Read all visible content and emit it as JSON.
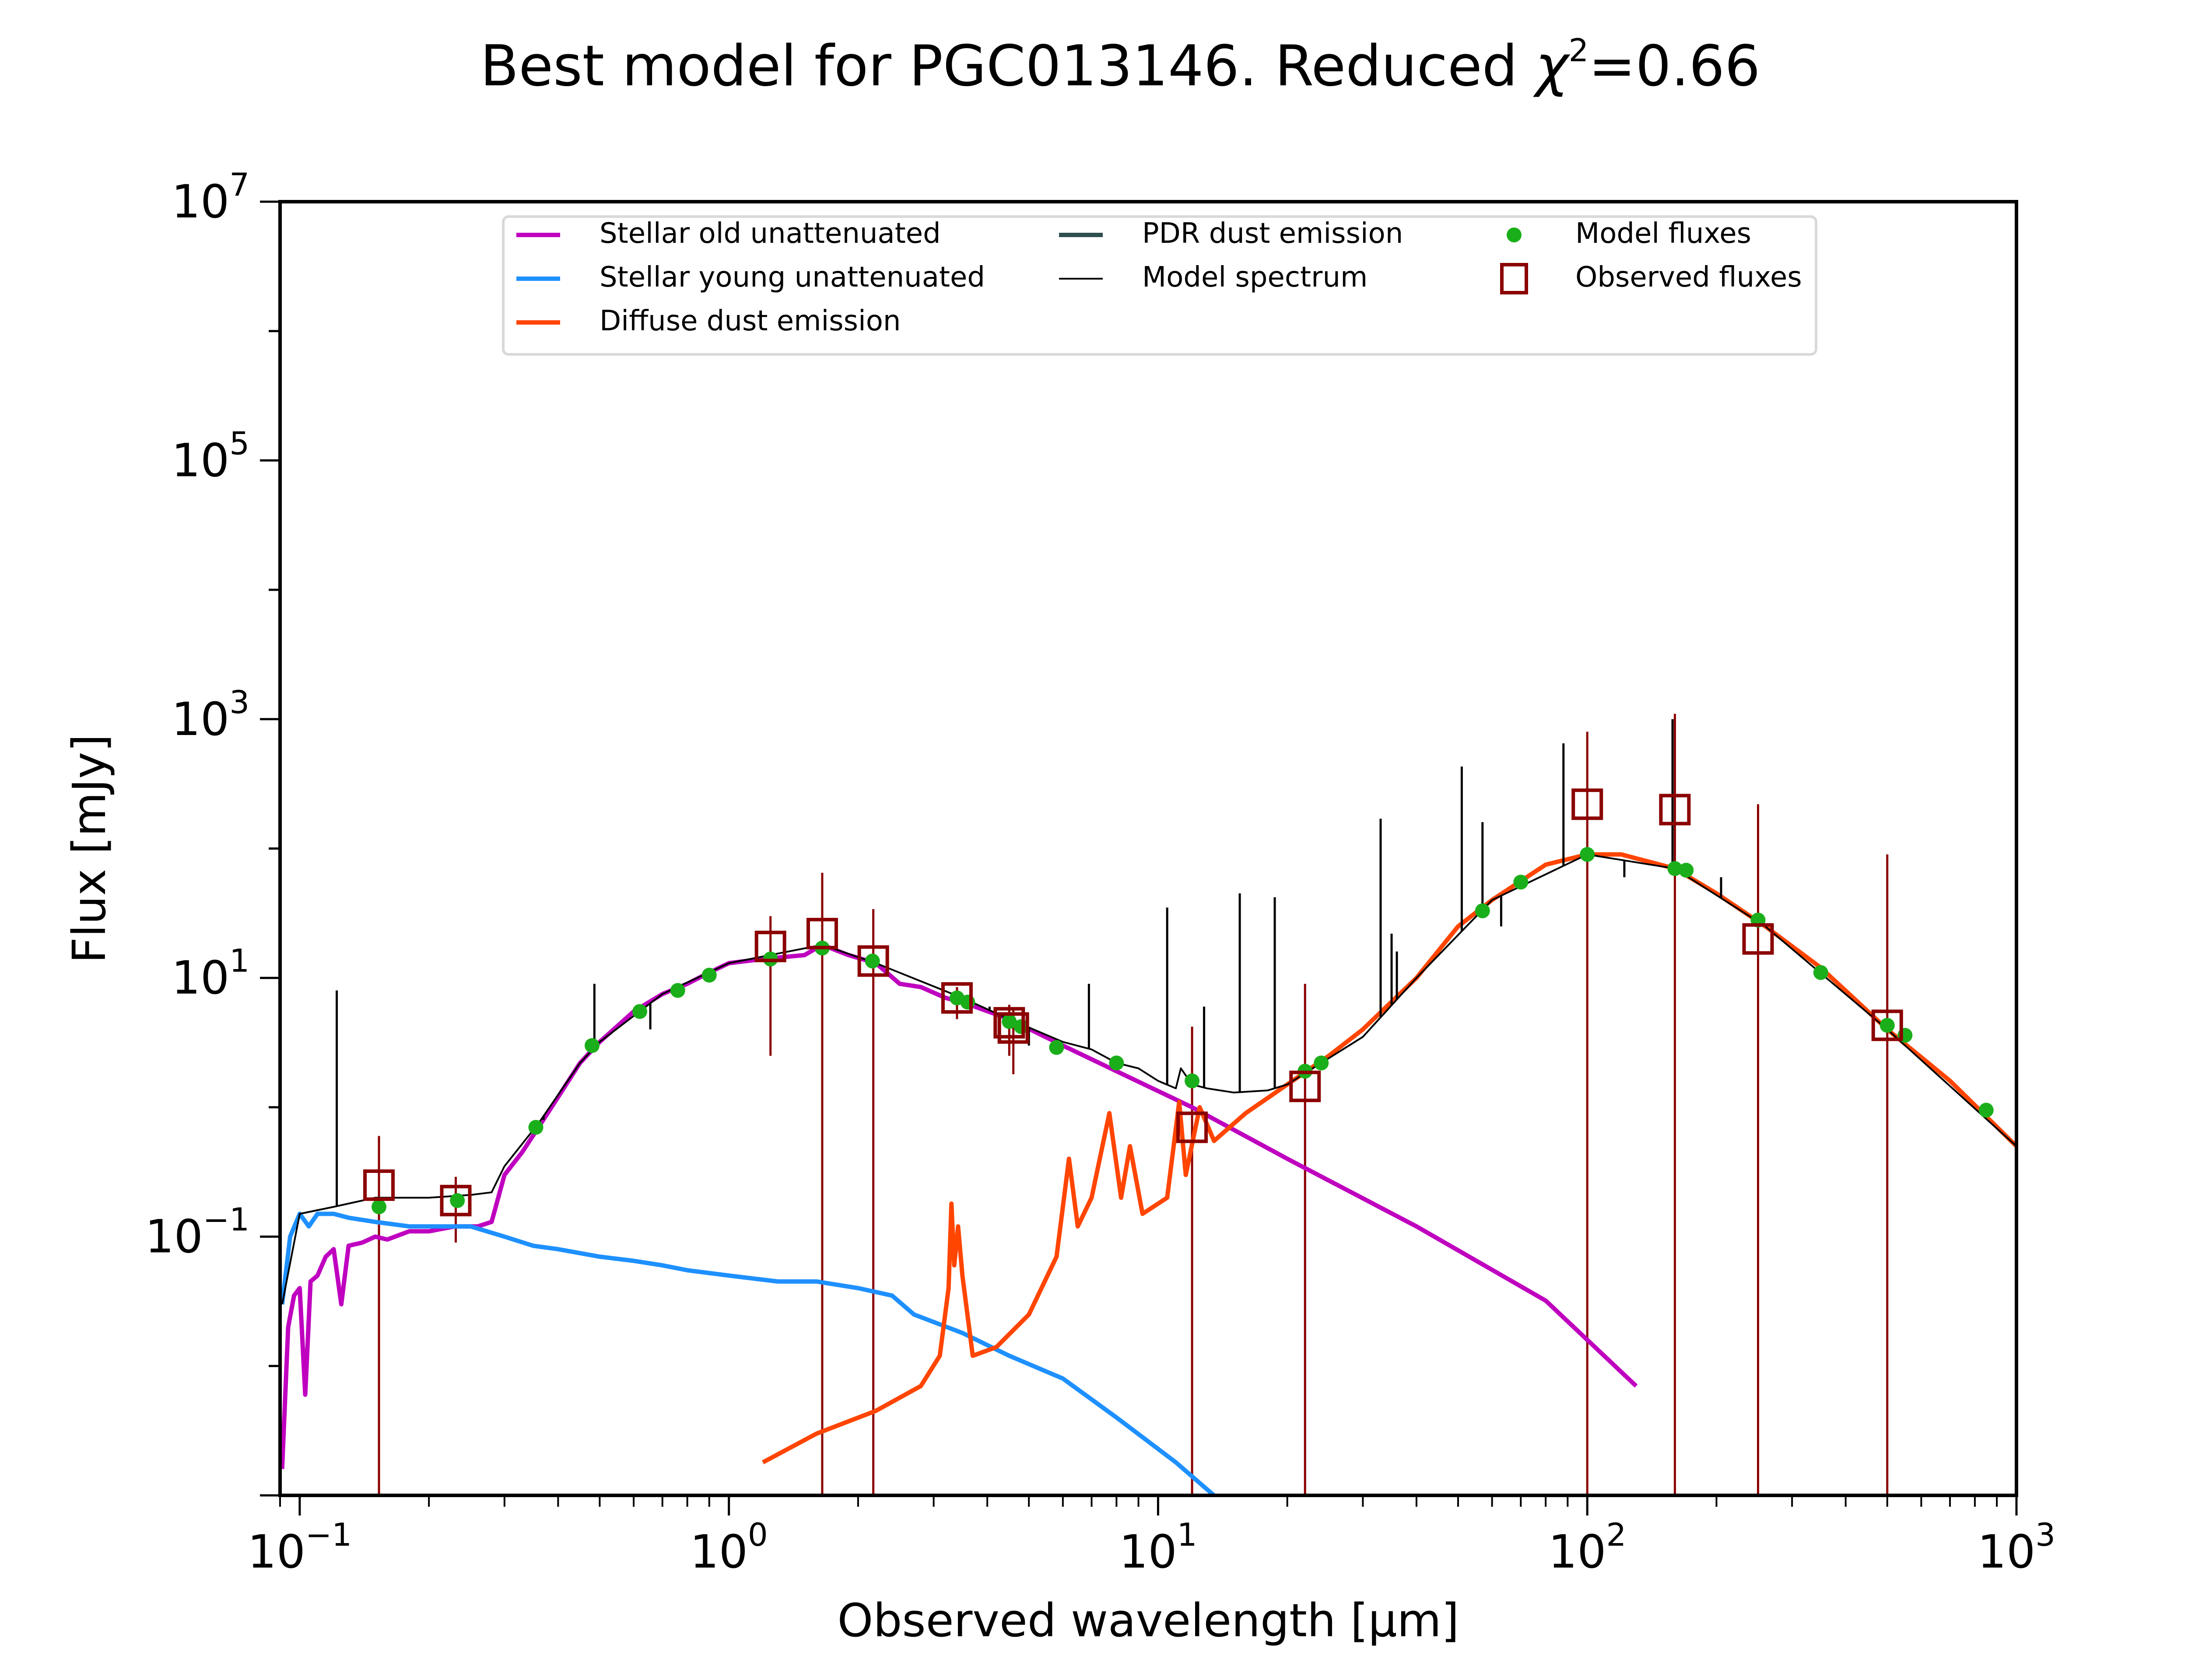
{
  "chart_data": {
    "type": "line",
    "title": "Best model for PGC013146. Reduced χ²=0.66",
    "title_parts": {
      "prefix": "Best model for PGC013146. Reduced ",
      "chi": "χ",
      "sup": "2",
      "suffix": "=0.66"
    },
    "xlabel": "Observed wavelength [μm]",
    "ylabel": "Flux [mJy]",
    "xscale": "log",
    "yscale": "log",
    "xlim": [
      0.09,
      1000
    ],
    "ylim": [
      0.001,
      10000000
    ],
    "x_ticks": [
      {
        "value": 0.1,
        "base": "10",
        "exp": "−1"
      },
      {
        "value": 1,
        "base": "10",
        "exp": "0"
      },
      {
        "value": 10,
        "base": "10",
        "exp": "1"
      },
      {
        "value": 100,
        "base": "10",
        "exp": "2"
      },
      {
        "value": 1000,
        "base": "10",
        "exp": "3"
      }
    ],
    "y_ticks": [
      {
        "value": 0.1,
        "base": "10",
        "exp": "−1"
      },
      {
        "value": 10,
        "base": "10",
        "exp": "1"
      },
      {
        "value": 1000,
        "base": "10",
        "exp": "3"
      },
      {
        "value": 100000,
        "base": "10",
        "exp": "5"
      },
      {
        "value": 10000000,
        "base": "10",
        "exp": "7"
      }
    ],
    "grid": false,
    "legend_position": "top-center",
    "series": [
      {
        "name": "Stellar old unattenuated",
        "kind": "line",
        "color": "#bf00bf",
        "points": [
          [
            0.091,
            0.0016
          ],
          [
            0.094,
            0.02
          ],
          [
            0.097,
            0.035
          ],
          [
            0.1,
            0.04
          ],
          [
            0.103,
            0.006
          ],
          [
            0.106,
            0.045
          ],
          [
            0.11,
            0.05
          ],
          [
            0.115,
            0.07
          ],
          [
            0.12,
            0.08
          ],
          [
            0.125,
            0.03
          ],
          [
            0.13,
            0.085
          ],
          [
            0.14,
            0.09
          ],
          [
            0.15,
            0.1
          ],
          [
            0.16,
            0.095
          ],
          [
            0.18,
            0.11
          ],
          [
            0.2,
            0.11
          ],
          [
            0.23,
            0.12
          ],
          [
            0.26,
            0.12
          ],
          [
            0.28,
            0.13
          ],
          [
            0.3,
            0.3
          ],
          [
            0.33,
            0.45
          ],
          [
            0.36,
            0.7
          ],
          [
            0.4,
            1.2
          ],
          [
            0.45,
            2.2
          ],
          [
            0.5,
            3.2
          ],
          [
            0.6,
            5.5
          ],
          [
            0.7,
            7.5
          ],
          [
            0.8,
            9
          ],
          [
            0.9,
            11
          ],
          [
            1.0,
            13
          ],
          [
            1.2,
            14
          ],
          [
            1.5,
            15
          ],
          [
            1.65,
            18
          ],
          [
            1.9,
            15
          ],
          [
            2.2,
            13
          ],
          [
            2.5,
            9
          ],
          [
            2.8,
            8.5
          ],
          [
            3.2,
            7
          ],
          [
            3.5,
            6.5
          ],
          [
            4.5,
            4.8
          ],
          [
            6,
            3
          ],
          [
            8,
            1.9
          ],
          [
            12,
            1.0
          ],
          [
            20,
            0.4
          ],
          [
            40,
            0.12
          ],
          [
            80,
            0.032
          ],
          [
            130,
            0.007
          ]
        ]
      },
      {
        "name": "Stellar young unattenuated",
        "kind": "line",
        "color": "#1e90ff",
        "points": [
          [
            0.091,
            0.03
          ],
          [
            0.095,
            0.1
          ],
          [
            0.1,
            0.15
          ],
          [
            0.105,
            0.12
          ],
          [
            0.11,
            0.15
          ],
          [
            0.12,
            0.15
          ],
          [
            0.13,
            0.14
          ],
          [
            0.15,
            0.13
          ],
          [
            0.18,
            0.12
          ],
          [
            0.2,
            0.12
          ],
          [
            0.25,
            0.12
          ],
          [
            0.3,
            0.1
          ],
          [
            0.35,
            0.085
          ],
          [
            0.4,
            0.08
          ],
          [
            0.5,
            0.07
          ],
          [
            0.6,
            0.065
          ],
          [
            0.7,
            0.06
          ],
          [
            0.8,
            0.055
          ],
          [
            1.0,
            0.05
          ],
          [
            1.3,
            0.045
          ],
          [
            1.6,
            0.045
          ],
          [
            2.0,
            0.04
          ],
          [
            2.4,
            0.035
          ],
          [
            2.7,
            0.025
          ],
          [
            3.5,
            0.018
          ],
          [
            4.5,
            0.012
          ],
          [
            6,
            0.008
          ],
          [
            8,
            0.004
          ],
          [
            11,
            0.0018
          ],
          [
            14,
            0.0009
          ]
        ]
      },
      {
        "name": "Diffuse dust emission",
        "kind": "line",
        "color": "#ff4500",
        "points": [
          [
            1.2,
            0.0018
          ],
          [
            1.6,
            0.003
          ],
          [
            2.2,
            0.0045
          ],
          [
            2.8,
            0.007
          ],
          [
            3.1,
            0.012
          ],
          [
            3.25,
            0.04
          ],
          [
            3.3,
            0.18
          ],
          [
            3.35,
            0.06
          ],
          [
            3.42,
            0.12
          ],
          [
            3.5,
            0.05
          ],
          [
            3.7,
            0.012
          ],
          [
            4.2,
            0.014
          ],
          [
            5,
            0.025
          ],
          [
            5.8,
            0.07
          ],
          [
            6.2,
            0.4
          ],
          [
            6.5,
            0.12
          ],
          [
            7,
            0.2
          ],
          [
            7.7,
            0.9
          ],
          [
            8.2,
            0.2
          ],
          [
            8.6,
            0.5
          ],
          [
            9.2,
            0.15
          ],
          [
            10.5,
            0.2
          ],
          [
            11.2,
            1.1
          ],
          [
            11.6,
            0.3
          ],
          [
            12.5,
            1.0
          ],
          [
            13.5,
            0.55
          ],
          [
            16,
            0.9
          ],
          [
            20,
            1.5
          ],
          [
            25,
            2.5
          ],
          [
            30,
            4
          ],
          [
            40,
            10
          ],
          [
            50,
            25
          ],
          [
            60,
            40
          ],
          [
            80,
            75
          ],
          [
            100,
            90
          ],
          [
            120,
            90
          ],
          [
            160,
            70
          ],
          [
            200,
            45
          ],
          [
            260,
            25
          ],
          [
            350,
            12
          ],
          [
            500,
            4
          ],
          [
            700,
            1.6
          ],
          [
            1000,
            0.5
          ]
        ]
      },
      {
        "name": "PDR dust emission",
        "kind": "line",
        "color": "#2f4f4f",
        "points": []
      },
      {
        "name": "Model spectrum",
        "kind": "line",
        "color": "#000000",
        "points": [
          [
            0.091,
            0.03
          ],
          [
            0.1,
            0.15
          ],
          [
            0.12,
            0.17
          ],
          [
            0.15,
            0.2
          ],
          [
            0.2,
            0.2
          ],
          [
            0.25,
            0.21
          ],
          [
            0.28,
            0.22
          ],
          [
            0.3,
            0.35
          ],
          [
            0.36,
            0.75
          ],
          [
            0.45,
            2.2
          ],
          [
            0.5,
            3.2
          ],
          [
            0.7,
            7.5
          ],
          [
            1.0,
            13
          ],
          [
            1.65,
            18
          ],
          [
            2.2,
            13
          ],
          [
            3.5,
            7
          ],
          [
            4.5,
            4.8
          ],
          [
            6,
            3.2
          ],
          [
            7,
            2.8
          ],
          [
            8,
            2.2
          ],
          [
            9,
            2.0
          ],
          [
            10,
            1.6
          ],
          [
            11,
            1.4
          ],
          [
            11.3,
            2.0
          ],
          [
            12,
            1.5
          ],
          [
            13,
            1.4
          ],
          [
            15,
            1.3
          ],
          [
            18,
            1.35
          ],
          [
            20,
            1.5
          ],
          [
            24,
            2.2
          ],
          [
            30,
            3.5
          ],
          [
            40,
            10
          ],
          [
            60,
            40
          ],
          [
            100,
            90
          ],
          [
            160,
            70
          ],
          [
            260,
            25
          ],
          [
            500,
            4
          ],
          [
            1000,
            0.5
          ]
        ],
        "emission_lines": [
          [
            0.122,
            8
          ],
          [
            0.37,
            0.8
          ],
          [
            0.486,
            9
          ],
          [
            0.656,
            4
          ],
          [
            4.05,
            6
          ],
          [
            5.0,
            3
          ],
          [
            6.9,
            9
          ],
          [
            10.5,
            35
          ],
          [
            12.8,
            6
          ],
          [
            15.5,
            45
          ],
          [
            18.7,
            42
          ],
          [
            33,
            170
          ],
          [
            35,
            22
          ],
          [
            36,
            16
          ],
          [
            51,
            430
          ],
          [
            57,
            160
          ],
          [
            63,
            25
          ],
          [
            88,
            650
          ],
          [
            122,
            60
          ],
          [
            158,
            1000
          ],
          [
            205,
            60
          ]
        ]
      }
    ],
    "model_fluxes": {
      "name": "Model fluxes",
      "color": "#1aaf1a",
      "points": [
        [
          0.153,
          0.17
        ],
        [
          0.233,
          0.19
        ],
        [
          0.355,
          0.7
        ],
        [
          0.48,
          3.0
        ],
        [
          0.62,
          5.5
        ],
        [
          0.76,
          8
        ],
        [
          0.9,
          10.5
        ],
        [
          1.25,
          14
        ],
        [
          1.65,
          17
        ],
        [
          2.16,
          13.5
        ],
        [
          3.4,
          7.0
        ],
        [
          3.6,
          6.5
        ],
        [
          4.5,
          4.6
        ],
        [
          4.8,
          4.2
        ],
        [
          5.8,
          2.9
        ],
        [
          8.0,
          2.2
        ],
        [
          12,
          1.6
        ],
        [
          22,
          1.9
        ],
        [
          24,
          2.2
        ],
        [
          57,
          33
        ],
        [
          70,
          55
        ],
        [
          100,
          90
        ],
        [
          160,
          70
        ],
        [
          170,
          68
        ],
        [
          250,
          28
        ],
        [
          350,
          11
        ],
        [
          500,
          4.3
        ],
        [
          550,
          3.6
        ],
        [
          850,
          0.95
        ]
      ]
    },
    "observed_fluxes": {
      "name": "Observed fluxes",
      "color": "#8b0000",
      "points": [
        {
          "x": 0.153,
          "y": 0.25,
          "err_lo": 0.001,
          "err_hi": 0.6
        },
        {
          "x": 0.231,
          "y": 0.19,
          "err_lo": 0.09,
          "err_hi": 0.29
        },
        {
          "x": 1.25,
          "y": 17.5,
          "err_lo": 2.5,
          "err_hi": 30
        },
        {
          "x": 1.65,
          "y": 22,
          "err_lo": 0.001,
          "err_hi": 65
        },
        {
          "x": 2.17,
          "y": 13.5,
          "err_lo": 0.001,
          "err_hi": 34
        },
        {
          "x": 3.4,
          "y": 7.0,
          "err_lo": 4.8,
          "err_hi": 8.5
        },
        {
          "x": 4.5,
          "y": 4.5,
          "err_lo": 2.5,
          "err_hi": 6.2
        },
        {
          "x": 4.6,
          "y": 4.1,
          "err_lo": 1.8,
          "err_hi": 5.8
        },
        {
          "x": 12,
          "y": 0.7,
          "err_lo": 0.001,
          "err_hi": 4.2
        },
        {
          "x": 22,
          "y": 1.45,
          "err_lo": 0.001,
          "err_hi": 9
        },
        {
          "x": 100,
          "y": 220,
          "err_lo": 0.001,
          "err_hi": 800
        },
        {
          "x": 160,
          "y": 200,
          "err_lo": 0.001,
          "err_hi": 1100
        },
        {
          "x": 250,
          "y": 20,
          "err_lo": 0.001,
          "err_hi": 220
        },
        {
          "x": 500,
          "y": 4.3,
          "err_lo": 0.001,
          "err_hi": 90
        }
      ]
    },
    "legend": [
      {
        "label": "Stellar old unattenuated",
        "type": "line",
        "color": "#bf00bf"
      },
      {
        "label": "Stellar young unattenuated",
        "type": "line",
        "color": "#1e90ff"
      },
      {
        "label": "Diffuse dust emission",
        "type": "line",
        "color": "#ff4500"
      },
      {
        "label": "PDR dust emission",
        "type": "line",
        "color": "#2f4f4f"
      },
      {
        "label": "Model spectrum",
        "type": "thinline",
        "color": "#000000"
      },
      {
        "label": "Model fluxes",
        "type": "dot",
        "color": "#1aaf1a"
      },
      {
        "label": "Observed fluxes",
        "type": "square",
        "color": "#8b0000"
      }
    ]
  }
}
